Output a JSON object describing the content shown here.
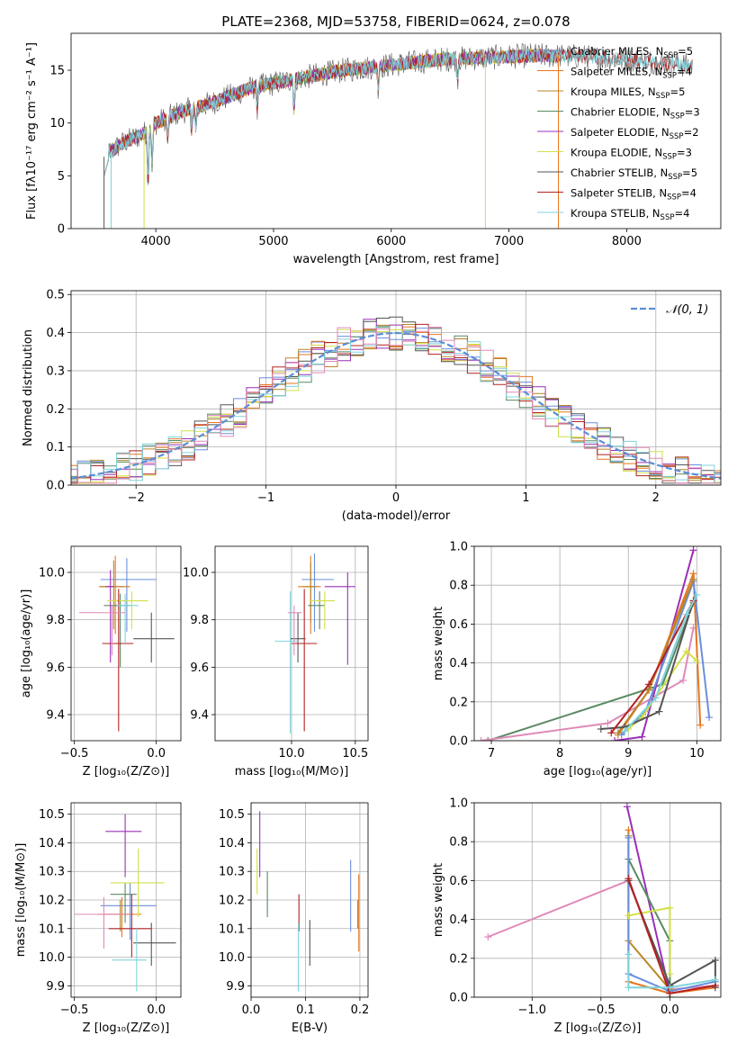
{
  "colors": {
    "Chabrier MILES": "#6a8fdc",
    "Salpeter MILES": "#e8761e",
    "Kroupa MILES": "#b8862a",
    "Chabrier ELODIE": "#5a8a62",
    "Salpeter ELODIE": "#9a30b8",
    "Kroupa ELODIE": "#d2e048",
    "Chabrier STELIB": "#555555",
    "Salpeter STELIB": "#b22222",
    "Kroupa STELIB": "#7fd4dc",
    "pink": "#e08ab8",
    "gaussian": "#5b8ed6"
  },
  "chart_data": [
    {
      "id": "spectrum",
      "type": "line",
      "title": "PLATE=2368, MJD=53758, FIBERID=0624, z=0.078",
      "xlabel": "wavelength [Angstrom, rest frame]",
      "ylabel": "Flux [fλ10⁻¹⁷ erg cm⁻² s⁻¹ A⁻¹]",
      "xlim": [
        3280,
        8800
      ],
      "ylim": [
        0,
        18.5
      ],
      "xticks": [
        4000,
        5000,
        6000,
        7000,
        8000
      ],
      "yticks": [
        0,
        5,
        10,
        15
      ],
      "legend_position": "right",
      "legend": [
        {
          "name": "Chabrier MILES",
          "nssp": "5"
        },
        {
          "name": "Salpeter MILES",
          "nssp": "4"
        },
        {
          "name": "Kroupa MILES",
          "nssp": "5"
        },
        {
          "name": "Chabrier ELODIE",
          "nssp": "3"
        },
        {
          "name": "Salpeter ELODIE",
          "nssp": "2"
        },
        {
          "name": "Kroupa ELODIE",
          "nssp": "3"
        },
        {
          "name": "Chabrier STELIB",
          "nssp": "5"
        },
        {
          "name": "Salpeter STELIB",
          "nssp": "4"
        },
        {
          "name": "Kroupa STELIB",
          "nssp": "4"
        }
      ],
      "continuum": {
        "wavelength": [
          3560,
          3700,
          3900,
          4000,
          4200,
          4500,
          4800,
          5200,
          5600,
          6000,
          6400,
          6800,
          7200,
          7600,
          8000,
          8400,
          8560
        ],
        "flux": [
          6.8,
          8.0,
          9.0,
          10.0,
          11.0,
          12.0,
          13.3,
          14.2,
          15.0,
          15.5,
          16.0,
          16.2,
          16.4,
          16.3,
          16.0,
          15.6,
          15.4
        ]
      }
    },
    {
      "id": "residuals",
      "type": "bar",
      "xlabel": "(data-model)/error",
      "ylabel": "Normed distribution",
      "xlim": [
        -2.5,
        2.5
      ],
      "ylim": [
        0,
        0.51
      ],
      "xticks": [
        -2,
        -1,
        0,
        1,
        2
      ],
      "yticks": [
        0.0,
        0.1,
        0.2,
        0.3,
        0.4,
        0.5
      ],
      "legend_label": "𝒩(0, 1)",
      "legend_position": "top-right",
      "bin_width": 0.1
    },
    {
      "id": "age_vs_Z",
      "type": "scatter",
      "xlabel": "Z [log₁₀(Z/Z⊙)]",
      "ylabel": "age  [log₁₀(age/yr)]",
      "xlim": [
        -0.52,
        0.15
      ],
      "ylim": [
        9.29,
        10.11
      ],
      "xticks": [
        -0.5,
        0.0
      ],
      "yticks": [
        9.4,
        9.6,
        9.8,
        10.0
      ],
      "points": [
        {
          "series": "Chabrier MILES",
          "x": -0.18,
          "y": 9.97,
          "xerr": [
            0.16,
            0.18
          ],
          "yerr": [
            0.22,
            0.09
          ]
        },
        {
          "series": "Salpeter MILES",
          "x": -0.25,
          "y": 9.94,
          "xerr": [
            0.1,
            0.09
          ],
          "yerr": [
            0.2,
            0.13
          ]
        },
        {
          "series": "Kroupa MILES",
          "x": -0.26,
          "y": 9.94,
          "xerr": [
            0.08,
            0.06
          ],
          "yerr": [
            0.18,
            0.11
          ]
        },
        {
          "series": "Chabrier ELODIE",
          "x": -0.22,
          "y": 9.86,
          "xerr": [
            0.1,
            0.06
          ],
          "yerr": [
            0.26,
            0.05
          ]
        },
        {
          "series": "Salpeter ELODIE",
          "x": -0.28,
          "y": 9.94,
          "xerr": [
            0.03,
            0.02
          ],
          "yerr": [
            0.32,
            0.07
          ]
        },
        {
          "series": "Kroupa ELODIE",
          "x": -0.15,
          "y": 9.88,
          "xerr": [
            0.15,
            0.1
          ],
          "yerr": [
            0.12,
            0.04
          ]
        },
        {
          "series": "Chabrier STELIB",
          "x": -0.03,
          "y": 9.72,
          "xerr": [
            0.11,
            0.14
          ],
          "yerr": [
            0.1,
            0.11
          ]
        },
        {
          "series": "Salpeter STELIB",
          "x": -0.23,
          "y": 9.7,
          "xerr": [
            0.1,
            0.09
          ],
          "yerr": [
            0.37,
            0.23
          ]
        },
        {
          "series": "Kroupa STELIB",
          "x": -0.19,
          "y": 9.86,
          "xerr": [
            0.05,
            0.08
          ],
          "yerr": [
            0.16,
            0.05
          ]
        },
        {
          "series": "pink",
          "x": -0.27,
          "y": 9.83,
          "xerr": [
            0.2,
            0.08
          ],
          "yerr": [
            0.18,
            0.03
          ]
        }
      ]
    },
    {
      "id": "age_vs_mass",
      "type": "scatter",
      "xlabel": "mass [log₁₀(M/M⊙)]",
      "ylabel": "",
      "xlim": [
        9.4,
        10.6
      ],
      "ylim": [
        9.29,
        10.11
      ],
      "xticks": [
        10.0,
        10.5
      ],
      "yticks": [
        9.4,
        9.6,
        9.8,
        10.0
      ],
      "points": [
        {
          "series": "Chabrier MILES",
          "x": 10.18,
          "y": 9.97,
          "xerr": [
            0.1,
            0.15
          ],
          "yerr": [
            0.22,
            0.11
          ]
        },
        {
          "series": "Salpeter MILES",
          "x": 10.15,
          "y": 9.94,
          "xerr": [
            0.1,
            0.08
          ],
          "yerr": [
            0.2,
            0.13
          ]
        },
        {
          "series": "Kroupa MILES",
          "x": 10.15,
          "y": 9.94,
          "xerr": [
            0.06,
            0.05
          ],
          "yerr": [
            0.15,
            0.1
          ]
        },
        {
          "series": "Chabrier ELODIE",
          "x": 10.22,
          "y": 9.86,
          "xerr": [
            0.09,
            0.04
          ],
          "yerr": [
            0.1,
            0.06
          ]
        },
        {
          "series": "Salpeter ELODIE",
          "x": 10.44,
          "y": 9.94,
          "xerr": [
            0.18,
            0.06
          ],
          "yerr": [
            0.33,
            0.06
          ]
        },
        {
          "series": "Kroupa ELODIE",
          "x": 10.26,
          "y": 9.88,
          "xerr": [
            0.12,
            0.08
          ],
          "yerr": [
            0.12,
            0.04
          ]
        },
        {
          "series": "Chabrier STELIB",
          "x": 10.05,
          "y": 9.72,
          "xerr": [
            0.06,
            0.06
          ],
          "yerr": [
            0.1,
            0.11
          ]
        },
        {
          "series": "Salpeter STELIB",
          "x": 10.1,
          "y": 9.7,
          "xerr": [
            0.1,
            0.1
          ],
          "yerr": [
            0.37,
            0.23
          ]
        },
        {
          "series": "Kroupa STELIB",
          "x": 9.99,
          "y": 9.71,
          "xerr": [
            0.12,
            0.06
          ],
          "yerr": [
            0.39,
            0.21
          ]
        },
        {
          "series": "pink",
          "x": 10.02,
          "y": 9.83,
          "xerr": [
            0.05,
            0.06
          ],
          "yerr": [
            0.18,
            0.03
          ]
        }
      ]
    },
    {
      "id": "weight_vs_age",
      "type": "line",
      "xlabel": "age  [log₁₀(age/yr)]",
      "ylabel": "mass weight",
      "xlim": [
        6.75,
        10.35
      ],
      "ylim": [
        0,
        1.0
      ],
      "xticks": [
        7,
        8,
        9,
        10
      ],
      "yticks": [
        0.0,
        0.2,
        0.4,
        0.6,
        0.8,
        1.0
      ],
      "series": [
        {
          "series": "Chabrier ELODIE",
          "x": [
            6.95,
            9.5,
            9.95
          ],
          "y": [
            0.0,
            0.29,
            0.71
          ]
        },
        {
          "series": "pink",
          "x": [
            6.85,
            8.7,
            9.8,
            9.95
          ],
          "y": [
            0.0,
            0.09,
            0.31,
            0.58
          ]
        },
        {
          "series": "Salpeter ELODIE",
          "x": [
            8.8,
            9.2,
            9.95
          ],
          "y": [
            0.0,
            0.02,
            0.98
          ]
        },
        {
          "series": "Salpeter MILES",
          "x": [
            8.85,
            9.3,
            9.95,
            10.05
          ],
          "y": [
            0.03,
            0.26,
            0.86,
            0.08
          ]
        },
        {
          "series": "Chabrier MILES",
          "x": [
            8.9,
            9.25,
            9.95,
            10.18
          ],
          "y": [
            0.03,
            0.15,
            0.82,
            0.12
          ]
        },
        {
          "series": "Kroupa MILES",
          "x": [
            8.85,
            9.3,
            9.95
          ],
          "y": [
            0.04,
            0.26,
            0.83
          ]
        },
        {
          "series": "Kroupa ELODIE",
          "x": [
            9.0,
            9.2,
            9.85,
            10.0
          ],
          "y": [
            0.06,
            0.12,
            0.46,
            0.41
          ]
        },
        {
          "series": "Chabrier STELIB",
          "x": [
            8.6,
            8.95,
            9.45,
            9.95
          ],
          "y": [
            0.06,
            0.07,
            0.15,
            0.72
          ]
        },
        {
          "series": "Salpeter STELIB",
          "x": [
            8.75,
            9.3,
            9.95
          ],
          "y": [
            0.04,
            0.29,
            0.72
          ]
        },
        {
          "series": "Kroupa STELIB",
          "x": [
            8.95,
            9.4,
            9.85,
            10.0
          ],
          "y": [
            0.05,
            0.22,
            0.65,
            0.75
          ]
        }
      ]
    },
    {
      "id": "mass_vs_Z",
      "type": "scatter",
      "xlabel": "Z [log₁₀(Z/Z⊙)]",
      "ylabel": "mass [log₁₀(M/M⊙)]",
      "xlim": [
        -0.52,
        0.15
      ],
      "ylim": [
        9.86,
        10.54
      ],
      "xticks": [
        -0.5,
        0.0
      ],
      "yticks": [
        9.9,
        10.0,
        10.1,
        10.2,
        10.3,
        10.4,
        10.5
      ],
      "points": [
        {
          "series": "Chabrier MILES",
          "x": -0.16,
          "y": 10.18,
          "xerr": [
            0.18,
            0.16
          ],
          "yerr": [
            0.12,
            0.08
          ]
        },
        {
          "series": "Salpeter MILES",
          "x": -0.21,
          "y": 10.15,
          "xerr": [
            0.15,
            0.12
          ],
          "yerr": [
            0.08,
            0.06
          ]
        },
        {
          "series": "Kroupa MILES",
          "x": -0.22,
          "y": 10.15,
          "xerr": [
            0.1,
            0.06
          ],
          "yerr": [
            0.06,
            0.05
          ]
        },
        {
          "series": "Chabrier ELODIE",
          "x": -0.19,
          "y": 10.22,
          "xerr": [
            0.09,
            0.07
          ],
          "yerr": [
            0.1,
            0.04
          ]
        },
        {
          "series": "Salpeter ELODIE",
          "x": -0.19,
          "y": 10.44,
          "xerr": [
            0.12,
            0.1
          ],
          "yerr": [
            0.16,
            0.06
          ]
        },
        {
          "series": "Kroupa ELODIE",
          "x": -0.11,
          "y": 10.26,
          "xerr": [
            0.17,
            0.16
          ],
          "yerr": [
            0.12,
            0.12
          ]
        },
        {
          "series": "Chabrier STELIB",
          "x": -0.03,
          "y": 10.05,
          "xerr": [
            0.11,
            0.15
          ],
          "yerr": [
            0.08,
            0.07
          ]
        },
        {
          "series": "Salpeter STELIB",
          "x": -0.15,
          "y": 10.1,
          "xerr": [
            0.14,
            0.12
          ],
          "yerr": [
            0.1,
            0.12
          ]
        },
        {
          "series": "Kroupa STELIB",
          "x": -0.12,
          "y": 9.99,
          "xerr": [
            0.15,
            0.06
          ],
          "yerr": [
            0.11,
            0.11
          ]
        },
        {
          "series": "pink",
          "x": -0.32,
          "y": 10.15,
          "xerr": [
            0.18,
            0.16
          ],
          "yerr": [
            0.12,
            0.06
          ]
        }
      ]
    },
    {
      "id": "mass_vs_ebv",
      "type": "scatter",
      "xlabel": "E(B-V)",
      "ylabel": "",
      "xlim": [
        0.0,
        0.215
      ],
      "ylim": [
        9.86,
        10.54
      ],
      "xticks": [
        0.0,
        0.1,
        0.2
      ],
      "yticks": [
        9.9,
        10.0,
        10.1,
        10.2,
        10.3,
        10.4,
        10.5
      ],
      "points": [
        {
          "series": "Chabrier MILES",
          "x": 0.183,
          "y": 10.2,
          "xerr": [
            0,
            0
          ],
          "yerr": [
            0.11,
            0.14
          ]
        },
        {
          "series": "Salpeter MILES",
          "x": 0.198,
          "y": 10.15,
          "xerr": [
            0,
            0
          ],
          "yerr": [
            0.13,
            0.14
          ]
        },
        {
          "series": "Kroupa MILES",
          "x": 0.196,
          "y": 10.15,
          "xerr": [
            0,
            0
          ],
          "yerr": [
            0.05,
            0.05
          ]
        },
        {
          "series": "Chabrier ELODIE",
          "x": 0.03,
          "y": 10.22,
          "xerr": [
            0,
            0
          ],
          "yerr": [
            0.08,
            0.08
          ]
        },
        {
          "series": "Salpeter ELODIE",
          "x": 0.016,
          "y": 10.44,
          "xerr": [
            0,
            0
          ],
          "yerr": [
            0.16,
            0.07
          ]
        },
        {
          "series": "Kroupa ELODIE",
          "x": 0.011,
          "y": 10.3,
          "xerr": [
            0,
            0
          ],
          "yerr": [
            0.08,
            0.08
          ]
        },
        {
          "series": "Chabrier STELIB",
          "x": 0.108,
          "y": 10.05,
          "xerr": [
            0,
            0
          ],
          "yerr": [
            0.08,
            0.08
          ]
        },
        {
          "series": "Salpeter STELIB",
          "x": 0.088,
          "y": 10.15,
          "xerr": [
            0,
            0
          ],
          "yerr": [
            0.06,
            0.07
          ]
        },
        {
          "series": "Kroupa STELIB",
          "x": 0.087,
          "y": 10.0,
          "xerr": [
            0,
            0
          ],
          "yerr": [
            0.12,
            0.12
          ]
        }
      ]
    },
    {
      "id": "weight_vs_Z",
      "type": "line",
      "xlabel": "Z [log₁₀(Z/Z⊙)]",
      "ylabel": "mass weight",
      "xlim": [
        -1.42,
        0.37
      ],
      "ylim": [
        0,
        1.0
      ],
      "xticks": [
        -1.0,
        -0.5,
        0.0
      ],
      "yticks": [
        0.0,
        0.2,
        0.4,
        0.6,
        0.8,
        1.0
      ],
      "series": [
        {
          "series": "pink",
          "x": [
            -1.32,
            -0.3,
            0.0,
            0.33
          ],
          "y": [
            0.31,
            0.6,
            0.04,
            0.06
          ]
        },
        {
          "series": "Salpeter ELODIE",
          "x": [
            -0.31,
            0.0
          ],
          "y": [
            0.98,
            0.02
          ]
        },
        {
          "series": "Salpeter MILES",
          "x": [
            -0.3,
            -0.3,
            0.0,
            0.33
          ],
          "y": [
            0.86,
            0.08,
            0.02,
            0.05
          ]
        },
        {
          "series": "Kroupa MILES",
          "x": [
            -0.3,
            -0.3,
            0.0
          ],
          "y": [
            0.83,
            0.29,
            0.04
          ]
        },
        {
          "series": "Chabrier ELODIE",
          "x": [
            -0.3,
            0.0,
            0.0
          ],
          "y": [
            0.71,
            0.29,
            0.0
          ]
        },
        {
          "series": "Chabrier MILES",
          "x": [
            -0.3,
            -0.3,
            0.0,
            0.33
          ],
          "y": [
            0.82,
            0.12,
            0.03,
            0.08
          ]
        },
        {
          "series": "Kroupa ELODIE",
          "x": [
            -0.3,
            0.0,
            0.0
          ],
          "y": [
            0.42,
            0.46,
            0.12
          ]
        },
        {
          "series": "Chabrier STELIB",
          "x": [
            -0.3,
            0.0,
            0.33,
            0.33
          ],
          "y": [
            0.6,
            0.06,
            0.19,
            0.05
          ]
        },
        {
          "series": "Salpeter STELIB",
          "x": [
            -0.3,
            0.0,
            0.33
          ],
          "y": [
            0.61,
            0.02,
            0.06
          ]
        },
        {
          "series": "Kroupa STELIB",
          "x": [
            -0.3,
            -0.3,
            0.0,
            0.33
          ],
          "y": [
            0.22,
            0.05,
            0.05,
            0.09
          ]
        }
      ]
    }
  ]
}
